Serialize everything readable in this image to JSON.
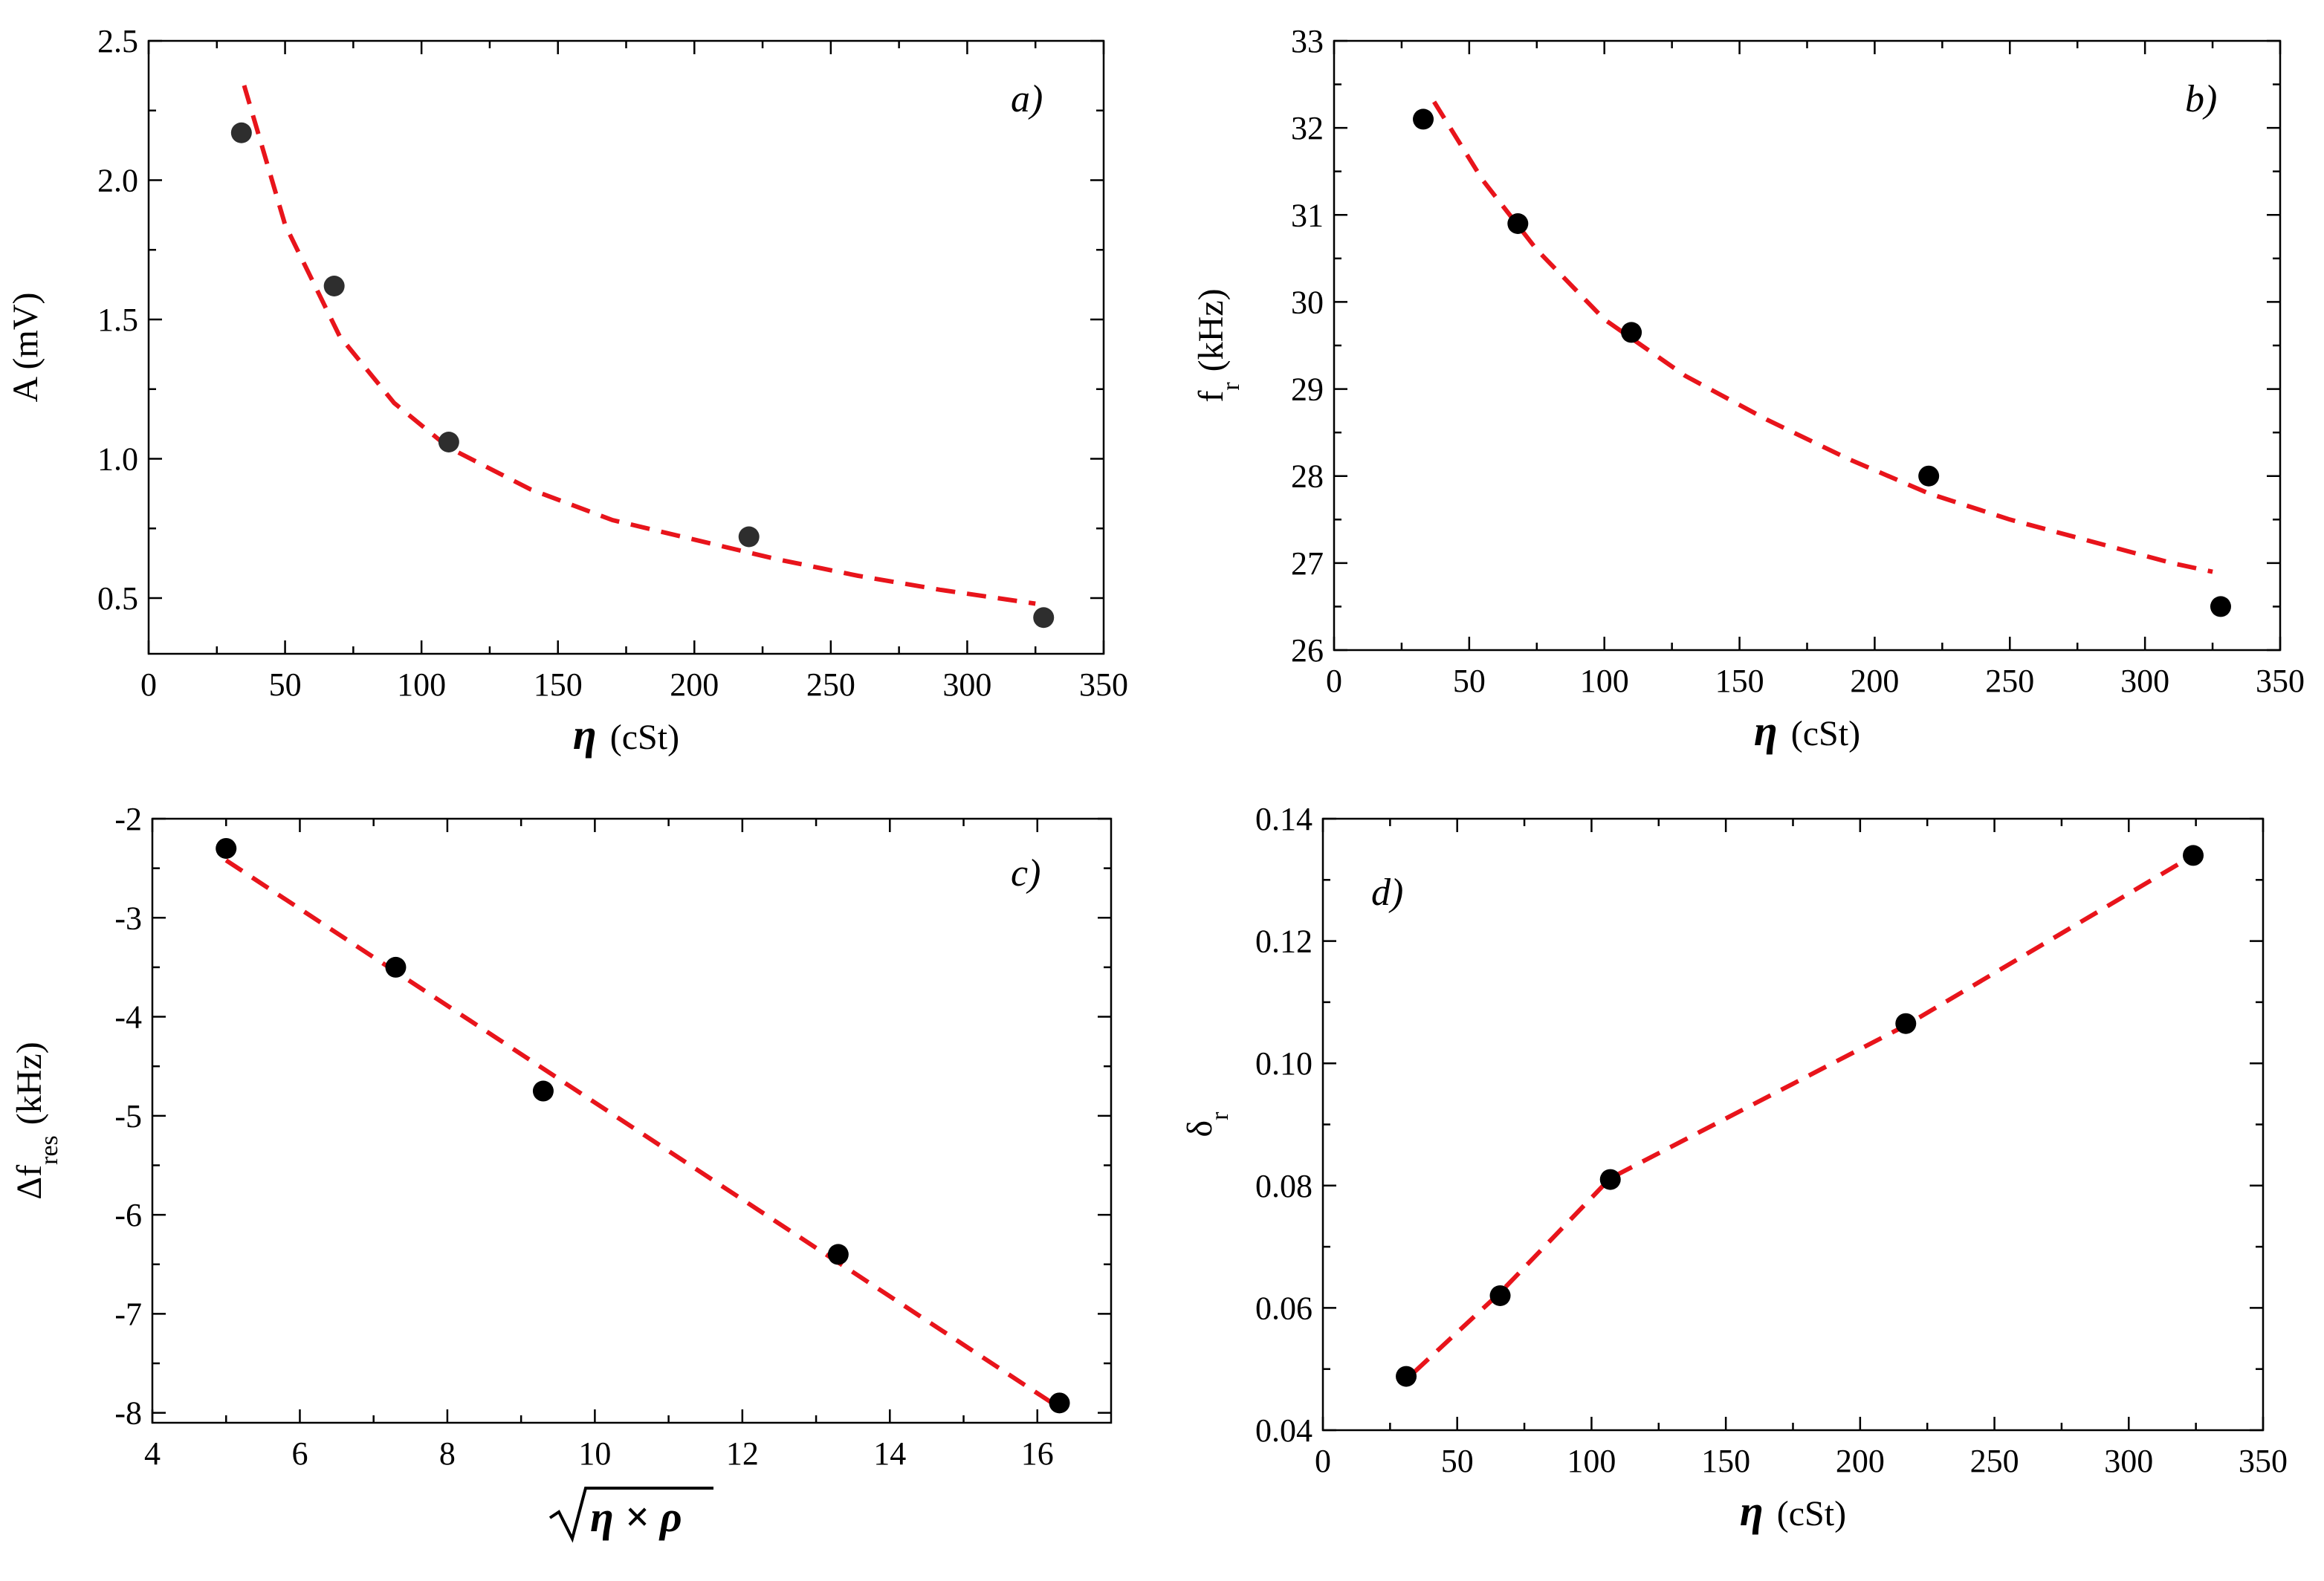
{
  "chart_data": [
    {
      "id": "a",
      "type": "scatter",
      "panel_label": "a)",
      "xlabel_symbol": "η",
      "xlabel": "(cSt)",
      "ylabel": "A (mV)",
      "xlim": [
        0,
        350
      ],
      "ylim": [
        0.3,
        2.5
      ],
      "xticks": [
        0,
        50,
        100,
        150,
        200,
        250,
        300,
        350
      ],
      "xtick_labels": [
        "0",
        "50",
        "100",
        "150",
        "200",
        "250",
        "300",
        "350"
      ],
      "yticks": [
        0.5,
        1.0,
        1.5,
        2.0,
        2.5
      ],
      "ytick_labels": [
        "0.5",
        "1.0",
        "1.5",
        "2.0",
        "2.5"
      ],
      "points": {
        "x": [
          34,
          68,
          110,
          220,
          328
        ],
        "y": [
          2.17,
          1.62,
          1.06,
          0.72,
          0.43
        ]
      },
      "fit": {
        "x": [
          35,
          50,
          70,
          90,
          110,
          140,
          170,
          200,
          230,
          260,
          290,
          325
        ],
        "y": [
          2.34,
          1.84,
          1.44,
          1.2,
          1.04,
          0.89,
          0.78,
          0.71,
          0.64,
          0.58,
          0.53,
          0.48
        ]
      }
    },
    {
      "id": "b",
      "type": "scatter",
      "panel_label": "b)",
      "xlabel_symbol": "η",
      "xlabel": "(cSt)",
      "ylabel_main": "f",
      "ylabel_sub": "r",
      "ylabel_unit": "(kHz)",
      "xlim": [
        0,
        350
      ],
      "ylim": [
        26,
        33
      ],
      "xticks": [
        0,
        50,
        100,
        150,
        200,
        250,
        300,
        350
      ],
      "xtick_labels": [
        "0",
        "50",
        "100",
        "150",
        "200",
        "250",
        "300",
        "350"
      ],
      "yticks": [
        26,
        27,
        28,
        29,
        30,
        31,
        32,
        33
      ],
      "ytick_labels": [
        "26",
        "27",
        "28",
        "29",
        "30",
        "31",
        "32",
        "33"
      ],
      "points": {
        "x": [
          33,
          68,
          110,
          220,
          328
        ],
        "y": [
          32.1,
          30.9,
          29.65,
          28.0,
          26.5
        ]
      },
      "fit": {
        "x": [
          37,
          55,
          75,
          100,
          130,
          160,
          190,
          220,
          250,
          280,
          310,
          325
        ],
        "y": [
          32.3,
          31.4,
          30.6,
          29.8,
          29.15,
          28.65,
          28.2,
          27.8,
          27.5,
          27.25,
          27.0,
          26.9
        ]
      }
    },
    {
      "id": "c",
      "type": "scatter",
      "panel_label": "c)",
      "xlabel_expr": "η × ρ",
      "ylabel_main": "Δf",
      "ylabel_sub": "res",
      "ylabel_unit": "(kHz)",
      "xlim": [
        4,
        17
      ],
      "ylim": [
        -8.1,
        -2
      ],
      "xticks": [
        4,
        6,
        8,
        10,
        12,
        14,
        16
      ],
      "xtick_labels": [
        "4",
        "6",
        "8",
        "10",
        "12",
        "14",
        "16"
      ],
      "yticks": [
        -8,
        -7,
        -6,
        -5,
        -4,
        -3,
        -2
      ],
      "ytick_labels": [
        "-8",
        "-7",
        "-6",
        "-5",
        "-4",
        "-3",
        "-2"
      ],
      "points": {
        "x": [
          5.0,
          7.3,
          9.3,
          13.3,
          16.3
        ],
        "y": [
          -2.3,
          -3.5,
          -4.75,
          -6.4,
          -7.9
        ]
      },
      "fit": {
        "x": [
          5.0,
          16.2
        ],
        "y": [
          -2.42,
          -7.9
        ]
      }
    },
    {
      "id": "d",
      "type": "scatter",
      "panel_label": "d)",
      "xlabel_symbol": "η",
      "xlabel": "(cSt)",
      "ylabel_main": "δ",
      "ylabel_sub": "r",
      "xlim": [
        0,
        350
      ],
      "ylim": [
        0.04,
        0.14
      ],
      "xticks": [
        0,
        50,
        100,
        150,
        200,
        250,
        300,
        350
      ],
      "xtick_labels": [
        "0",
        "50",
        "100",
        "150",
        "200",
        "250",
        "300",
        "350"
      ],
      "yticks": [
        0.04,
        0.06,
        0.08,
        0.1,
        0.12,
        0.14
      ],
      "ytick_labels": [
        "0.04",
        "0.06",
        "0.08",
        "0.10",
        "0.12",
        "0.14"
      ],
      "points": {
        "x": [
          31,
          66,
          107,
          217,
          324
        ],
        "y": [
          0.0488,
          0.062,
          0.081,
          0.1065,
          0.134
        ]
      },
      "fit": {
        "x": [
          34,
          66,
          107,
          217,
          324
        ],
        "y": [
          0.0495,
          0.0625,
          0.0812,
          0.1062,
          0.134
        ]
      }
    }
  ]
}
